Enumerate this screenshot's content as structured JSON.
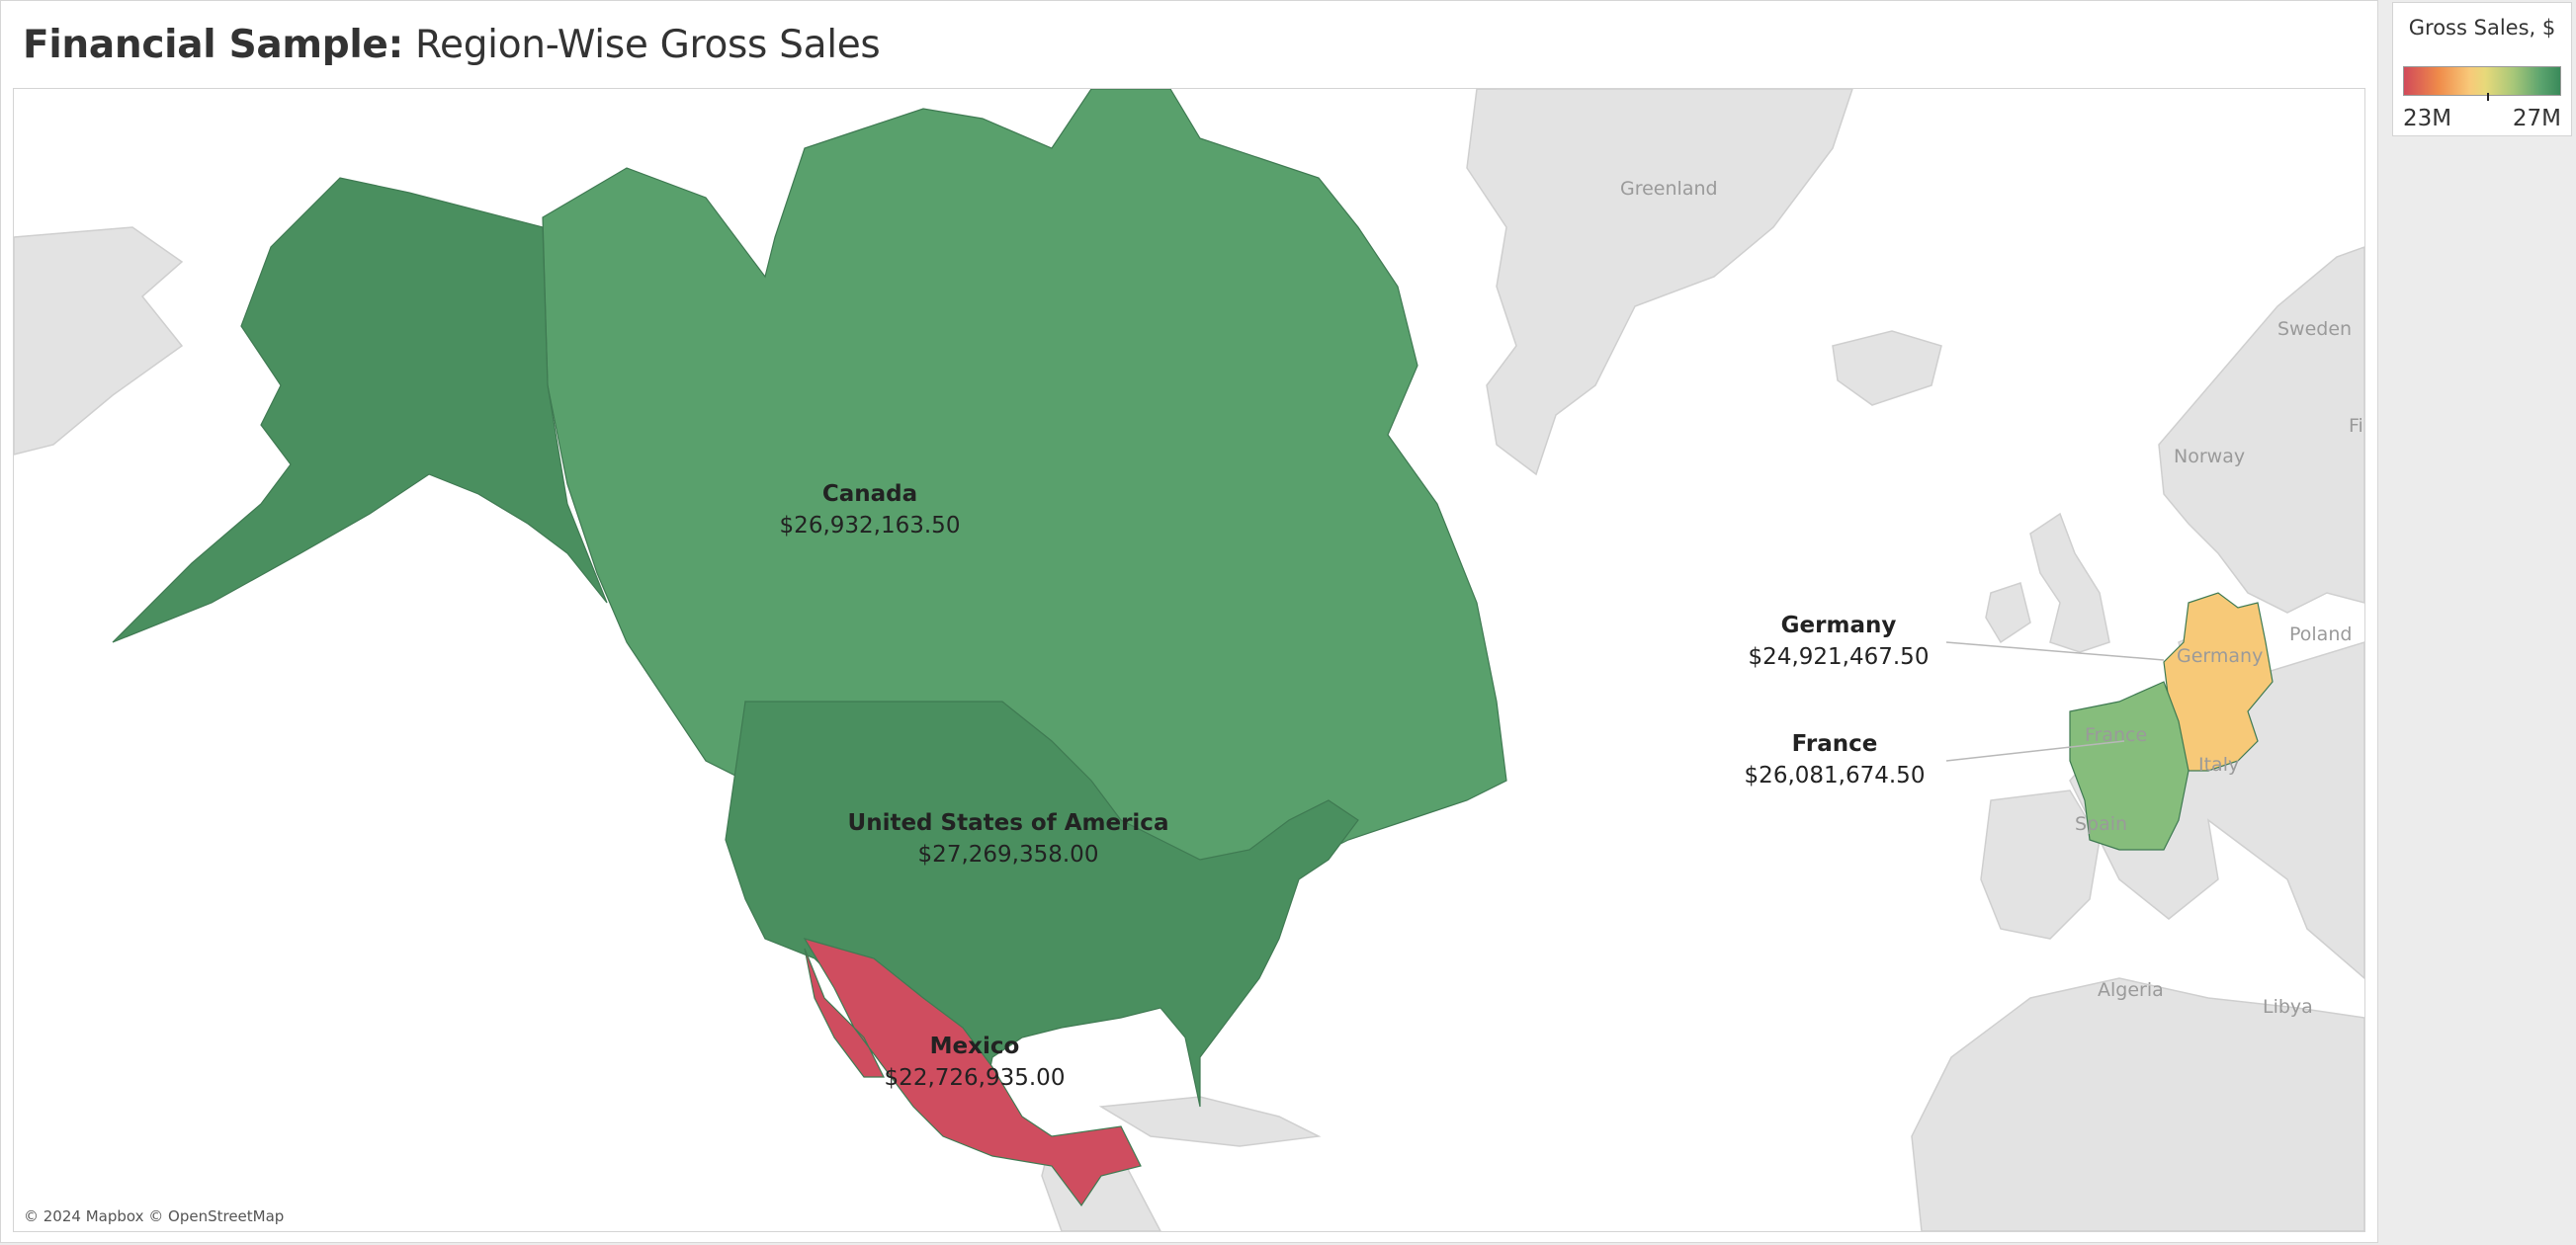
{
  "title": {
    "bold": "Financial Sample:",
    "rest": " Region-Wise Gross Sales"
  },
  "legend": {
    "title": "Gross Sales, $",
    "min_label": "23M",
    "max_label": "27M",
    "min_value": 22726935.0,
    "max_value": 27269358.0,
    "color_low": "#d14a5a",
    "color_mid": "#f8c979",
    "color_high": "#3a8a5a"
  },
  "regions": [
    {
      "name": "Canada",
      "value": "$26,932,163.50",
      "color": "#59a06c"
    },
    {
      "name": "United States of America",
      "value": "$27,269,358.00",
      "color": "#4a8f5f"
    },
    {
      "name": "Mexico",
      "value": "$22,726,935.00",
      "color": "#cf4d5f"
    },
    {
      "name": "Germany",
      "value": "$24,921,467.50",
      "color": "#f7c978"
    },
    {
      "name": "France",
      "value": "$26,081,674.50",
      "color": "#86bd7c"
    }
  ],
  "basemap_labels": {
    "greenland": "Greenland",
    "norway": "Norway",
    "sweden": "Sweden",
    "finland": "Fi",
    "poland": "Poland",
    "italy": "Italy",
    "spain": "Spain",
    "algeria": "Algeria",
    "libya": "Libya",
    "france_base": "France",
    "germany_base": "Germany"
  },
  "attribution": "© 2024 Mapbox © OpenStreetMap"
}
